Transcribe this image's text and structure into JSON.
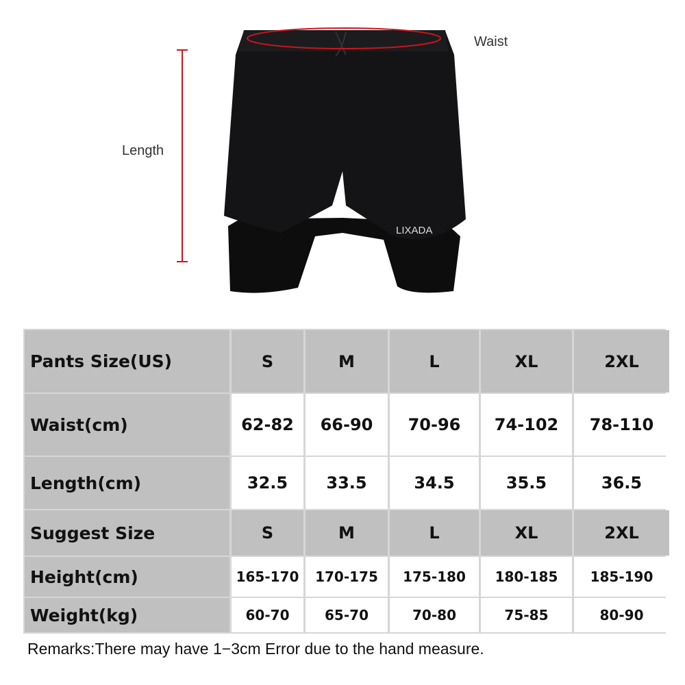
{
  "annotations": {
    "waist": "Waist",
    "length": "Length"
  },
  "brand_logo": "LIXADA",
  "colors": {
    "measure_line": "#c8161d",
    "header_fill": "#c0c0c0",
    "value_fill": "#ffffff"
  },
  "size_table": {
    "rows": [
      {
        "label": "Pants Size(US)",
        "style": "header",
        "values": [
          "S",
          "M",
          "L",
          "XL",
          "2XL"
        ]
      },
      {
        "label": "Waist(cm)",
        "style": "value",
        "values": [
          "62-82",
          "66-90",
          "70-96",
          "74-102",
          "78-110"
        ]
      },
      {
        "label": "Length(cm)",
        "style": "value",
        "values": [
          "32.5",
          "33.5",
          "34.5",
          "35.5",
          "36.5"
        ]
      },
      {
        "label": "Suggest Size",
        "style": "header",
        "values": [
          "S",
          "M",
          "L",
          "XL",
          "2XL"
        ]
      },
      {
        "label": "Height(cm)",
        "style": "value-small",
        "values": [
          "165-170",
          "170-175",
          "175-180",
          "180-185",
          "185-190"
        ]
      },
      {
        "label": "Weight(kg)",
        "style": "value-small",
        "values": [
          "60-70",
          "65-70",
          "70-80",
          "75-85",
          "80-90"
        ]
      }
    ]
  },
  "remarks": "Remarks:There may have 1−3cm Error due to the hand measure."
}
